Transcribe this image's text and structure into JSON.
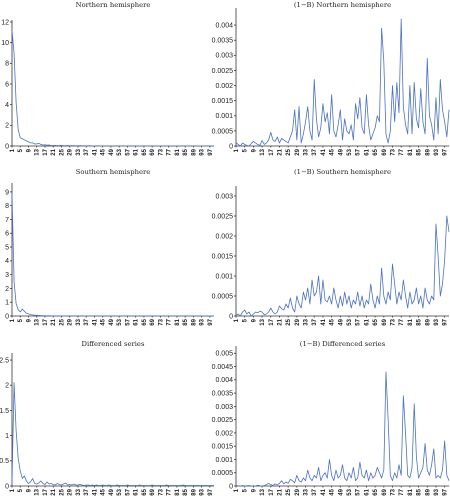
{
  "chart_data": [
    {
      "type": "line",
      "title": "Northern hemisphere",
      "ylim": [
        0,
        12
      ],
      "yticks": [
        0,
        2,
        4,
        6,
        8,
        10,
        12
      ],
      "yticklabels": [
        "0",
        "2",
        "4",
        "6",
        "8",
        "10",
        "12"
      ],
      "xticks": [
        "1",
        "5",
        "9",
        "13",
        "17",
        "21",
        "25",
        "29",
        "33",
        "37",
        "41",
        "45",
        "49",
        "53",
        "57",
        "61",
        "65",
        "69",
        "73",
        "77",
        "81",
        "85",
        "89",
        "93",
        "97"
      ],
      "series": [
        {
          "values": [
            11.2,
            9.0,
            4.2,
            1.6,
            0.8,
            0.7,
            0.6,
            0.5,
            0.4,
            0.3,
            0.3,
            0.2,
            0.2,
            0.25,
            0.15,
            0.1,
            0.12,
            0.08,
            0.1,
            0.05,
            0.05,
            0.06,
            0.04,
            0.05,
            0.06,
            0.04,
            0.03,
            0.05,
            0.02,
            0.03,
            0.04,
            0.02,
            0.02,
            0.03,
            0.02,
            0.02,
            0.01,
            0.02,
            0.02,
            0.01,
            0.01,
            0.01,
            0.02,
            0.01,
            0.01,
            0.01,
            0.01,
            0.01,
            0.01,
            0.01,
            0.01,
            0.01,
            0.01,
            0.01,
            0.01,
            0.01,
            0.01,
            0.01,
            0.01,
            0.01,
            0.01,
            0.01,
            0.01,
            0.01,
            0.01,
            0.01,
            0.01,
            0.01,
            0.01,
            0.01,
            0.01,
            0.01,
            0.01,
            0.01,
            0.01,
            0.01,
            0.01,
            0.01,
            0.01,
            0.01,
            0.01,
            0.01,
            0.01,
            0.01,
            0.01,
            0.01,
            0.01,
            0.01,
            0.01,
            0.01,
            0.01,
            0.01,
            0.01,
            0.01,
            0.01,
            0.01,
            0.01,
            0.01,
            0.01
          ]
        }
      ]
    },
    {
      "type": "line",
      "title": "(1−B) Northern hemisphere",
      "ylim": [
        0,
        0.0045
      ],
      "yticks": [
        0,
        0.0005,
        0.001,
        0.0015,
        0.002,
        0.0025,
        0.003,
        0.0035,
        0.004
      ],
      "yticklabels": [
        "0",
        "0.0005",
        "0.001",
        "0.0015",
        "0.002",
        "0.0025",
        "0.003",
        "0.0035",
        "0.004"
      ],
      "xticks": [
        "1",
        "5",
        "9",
        "13",
        "17",
        "21",
        "25",
        "29",
        "33",
        "37",
        "41",
        "45",
        "49",
        "53",
        "57",
        "61",
        "65",
        "69",
        "73",
        "77",
        "81",
        "85",
        "89",
        "93",
        "97"
      ],
      "series": [
        {
          "values": [
            0.00012,
            5e-05,
            0.0,
            0.0001,
            5e-05,
            2e-05,
            0.0,
            8e-05,
            0.00015,
            0.0001,
            5e-05,
            2e-05,
            0.00018,
            5e-05,
            0.0001,
            0.0002,
            0.00045,
            0.0002,
            0.00015,
            0.0003,
            0.0001,
            0.00025,
            0.0002,
            0.00015,
            0.0001,
            0.0003,
            0.0005,
            0.0012,
            0.0002,
            0.0013,
            0.0001,
            0.0004,
            0.0008,
            0.0013,
            0.0005,
            0.0002,
            0.0022,
            0.0009,
            0.0003,
            0.0006,
            0.0014,
            0.0008,
            0.0011,
            0.0004,
            0.0017,
            0.0005,
            0.0003,
            0.0007,
            0.0012,
            0.0002,
            0.0009,
            0.0005,
            0.0004,
            0.0007,
            0.0002,
            0.0014,
            0.0009,
            0.0016,
            0.0006,
            0.0004,
            0.0017,
            0.0007,
            0.0002,
            0.0004,
            0.0006,
            0.001,
            0.0008,
            0.0039,
            0.0028,
            0.0004,
            0.0001,
            0.0005,
            0.002,
            0.0008,
            0.0021,
            0.0011,
            0.0042,
            0.0013,
            0.0007,
            0.0004,
            0.002,
            0.0004,
            0.0021,
            0.0009,
            0.0006,
            0.0019,
            0.0008,
            0.0004,
            0.0029,
            0.001,
            0.0007,
            0.0002,
            0.0016,
            0.0004,
            0.0022,
            0.0012,
            0.0008,
            0.0003,
            0.0012
          ]
        }
      ]
    },
    {
      "type": "line",
      "title": "Southern hemisphere",
      "ylim": [
        0,
        9.5
      ],
      "yticks": [
        0,
        1,
        2,
        3,
        4,
        5,
        6,
        7,
        8,
        9
      ],
      "yticklabels": [
        "0",
        "1",
        "2",
        "3",
        "4",
        "5",
        "6",
        "7",
        "8",
        "9"
      ],
      "xticks": [
        "1",
        "5",
        "9",
        "13",
        "17",
        "21",
        "25",
        "29",
        "33",
        "37",
        "41",
        "45",
        "49",
        "53",
        "57",
        "61",
        "65",
        "69",
        "73",
        "77",
        "81",
        "85",
        "89",
        "93",
        "97"
      ],
      "series": [
        {
          "values": [
            8.9,
            2.5,
            0.9,
            0.45,
            0.3,
            0.5,
            0.35,
            0.2,
            0.15,
            0.1,
            0.08,
            0.06,
            0.05,
            0.04,
            0.03,
            0.03,
            0.02,
            0.02,
            0.02,
            0.01,
            0.01,
            0.01,
            0.01,
            0.01,
            0.01,
            0.01,
            0.01,
            0.01,
            0.01,
            0.01,
            0.01,
            0.01,
            0.01,
            0.01,
            0.01,
            0.01,
            0.01,
            0.01,
            0.01,
            0.01,
            0.01,
            0.01,
            0.01,
            0.01,
            0.01,
            0.01,
            0.01,
            0.01,
            0.01,
            0.01,
            0.01,
            0.01,
            0.01,
            0.01,
            0.01,
            0.01,
            0.01,
            0.01,
            0.01,
            0.01,
            0.01,
            0.01,
            0.01,
            0.01,
            0.01,
            0.01,
            0.01,
            0.01,
            0.01,
            0.01,
            0.01,
            0.01,
            0.01,
            0.01,
            0.01,
            0.01,
            0.01,
            0.01,
            0.01,
            0.01,
            0.01,
            0.01,
            0.01,
            0.01,
            0.01,
            0.01,
            0.01,
            0.01,
            0.01,
            0.01,
            0.01,
            0.01,
            0.01,
            0.01,
            0.01,
            0.01,
            0.01,
            0.01,
            0.01
          ]
        }
      ]
    },
    {
      "type": "line",
      "title": "(1−B) Southern hemisphere",
      "ylim": [
        0,
        0.0032
      ],
      "yticks": [
        0,
        0.0005,
        0.001,
        0.0015,
        0.002,
        0.0025,
        0.003
      ],
      "yticklabels": [
        "0",
        "0.0005",
        "0.001",
        "0.0015",
        "0.002",
        "0.0025",
        "0.003"
      ],
      "xticks": [
        "1",
        "5",
        "9",
        "13",
        "17",
        "21",
        "25",
        "29",
        "33",
        "37",
        "41",
        "45",
        "49",
        "53",
        "57",
        "61",
        "65",
        "69",
        "73",
        "77",
        "81",
        "85",
        "89",
        "93",
        "97"
      ],
      "series": [
        {
          "values": [
            2e-05,
            5e-05,
            0.0,
            0.0001,
            0.00015,
            5e-05,
            0.0001,
            0.0,
            5e-05,
            0.0001,
            8e-05,
            0.00012,
            0.0001,
            3e-05,
            5e-05,
            0.0001,
            0.0002,
            0.0001,
            5e-05,
            0.0001,
            0.00025,
            0.00018,
            0.00015,
            0.0003,
            0.0002,
            0.00045,
            0.0002,
            0.0001,
            0.0005,
            0.0003,
            0.0002,
            0.0006,
            0.0004,
            0.0007,
            0.0003,
            0.0009,
            0.0005,
            0.0006,
            0.001,
            0.0003,
            0.0009,
            0.0004,
            0.00035,
            0.0005,
            0.0003,
            0.0007,
            0.0004,
            0.0002,
            0.0005,
            0.00025,
            0.0006,
            0.0003,
            0.0005,
            0.0002,
            0.0004,
            0.0003,
            0.0006,
            0.00025,
            0.0005,
            0.0002,
            0.0004,
            0.0003,
            0.0008,
            0.0004,
            0.0002,
            0.0005,
            0.0003,
            0.0012,
            0.0005,
            0.0003,
            0.0006,
            0.0004,
            0.0013,
            0.0008,
            0.0003,
            0.0006,
            0.0004,
            0.0009,
            0.0005,
            0.0002,
            0.0006,
            0.0003,
            0.0004,
            0.0007,
            0.0003,
            0.0005,
            0.0002,
            0.0007,
            0.0004,
            0.0003,
            0.0005,
            0.0004,
            0.0023,
            0.0015,
            0.0005,
            0.0008,
            0.0014,
            0.0025,
            0.0021
          ]
        }
      ]
    },
    {
      "type": "line",
      "title": "Differenced series",
      "ylim": [
        0,
        2.6
      ],
      "yticks": [
        0,
        0.5,
        1,
        1.5,
        2,
        2.5
      ],
      "yticklabels": [
        "0",
        "0.5",
        "1",
        "1.5",
        "2",
        "2.5"
      ],
      "xticks": [
        "1",
        "5",
        "9",
        "13",
        "17",
        "21",
        "25",
        "29",
        "33",
        "37",
        "41",
        "45",
        "49",
        "53",
        "57",
        "61",
        "65",
        "69",
        "73",
        "77",
        "81",
        "85",
        "89",
        "93",
        "97"
      ],
      "series": [
        {
          "values": [
            0.05,
            2.05,
            1.1,
            0.55,
            0.3,
            0.15,
            0.2,
            0.1,
            0.05,
            0.08,
            0.15,
            0.05,
            0.04,
            0.06,
            0.1,
            0.05,
            0.03,
            0.08,
            0.04,
            0.05,
            0.03,
            0.02,
            0.05,
            0.03,
            0.02,
            0.04,
            0.06,
            0.02,
            0.03,
            0.02,
            0.04,
            0.02,
            0.02,
            0.03,
            0.02,
            0.01,
            0.02,
            0.02,
            0.01,
            0.02,
            0.01,
            0.02,
            0.01,
            0.01,
            0.02,
            0.01,
            0.01,
            0.02,
            0.01,
            0.01,
            0.01,
            0.02,
            0.01,
            0.01,
            0.01,
            0.01,
            0.02,
            0.01,
            0.01,
            0.01,
            0.01,
            0.01,
            0.02,
            0.01,
            0.01,
            0.01,
            0.01,
            0.01,
            0.02,
            0.01,
            0.01,
            0.01,
            0.01,
            0.01,
            0.01,
            0.02,
            0.01,
            0.01,
            0.01,
            0.01,
            0.01,
            0.01,
            0.01,
            0.02,
            0.01,
            0.01,
            0.01,
            0.01,
            0.01,
            0.01,
            0.01,
            0.01,
            0.01,
            0.01,
            0.01,
            0.01,
            0.01,
            0.01,
            0.01
          ]
        }
      ]
    },
    {
      "type": "line",
      "title": "(1−B) Differenced series",
      "ylim": [
        0,
        0.0052
      ],
      "yticks": [
        0,
        0.0005,
        0.001,
        0.0015,
        0.002,
        0.0025,
        0.003,
        0.0035,
        0.004,
        0.0045,
        0.005
      ],
      "yticklabels": [
        "0",
        "0.0005",
        "0.001",
        "0.0015",
        "0.002",
        "0.0025",
        "0.003",
        "0.0035",
        "0.004",
        "0.0045",
        "0.005"
      ],
      "xticks": [
        "1",
        "5",
        "9",
        "13",
        "17",
        "21",
        "25",
        "29",
        "33",
        "37",
        "41",
        "45",
        "49",
        "53",
        "57",
        "61",
        "65",
        "69",
        "73",
        "77",
        "81",
        "85",
        "89",
        "93",
        "97"
      ],
      "series": [
        {
          "values": [
            2e-05,
            1e-05,
            0.0,
            2e-05,
            0.0,
            1e-05,
            2e-05,
            0.0,
            1e-05,
            0.0,
            3e-05,
            1e-05,
            0.0,
            2e-05,
            5e-05,
            0.0001,
            5e-05,
            2e-05,
            8e-05,
            4e-05,
            0.0001,
            0.0002,
            8e-05,
            0.00015,
            0.0001,
            0.00025,
            0.0002,
            0.00012,
            0.0004,
            0.0002,
            0.00015,
            0.0003,
            0.0002,
            0.0006,
            0.0003,
            0.0002,
            0.0004,
            0.0003,
            0.0007,
            0.0002,
            0.0004,
            0.0005,
            0.0003,
            0.001,
            0.0004,
            0.0002,
            0.0006,
            0.0003,
            0.0004,
            0.0008,
            0.0003,
            0.0002,
            0.0005,
            0.0003,
            0.0007,
            0.0002,
            0.0003,
            0.0009,
            0.0004,
            0.0003,
            0.0006,
            0.0002,
            0.0005,
            0.0003,
            0.0004,
            0.0007,
            0.0005,
            0.0003,
            0.0006,
            0.0043,
            0.0025,
            0.0004,
            0.0002,
            0.0005,
            0.0003,
            0.0008,
            0.0004,
            0.0034,
            0.002,
            0.0004,
            0.0003,
            0.0007,
            0.0031,
            0.0011,
            0.0003,
            0.0005,
            0.0007,
            0.0016,
            0.0006,
            0.0004,
            0.0008,
            0.0014,
            0.0003,
            0.0004,
            0.0003,
            0.0006,
            0.0017,
            0.0004,
            0.0002
          ]
        }
      ]
    }
  ]
}
